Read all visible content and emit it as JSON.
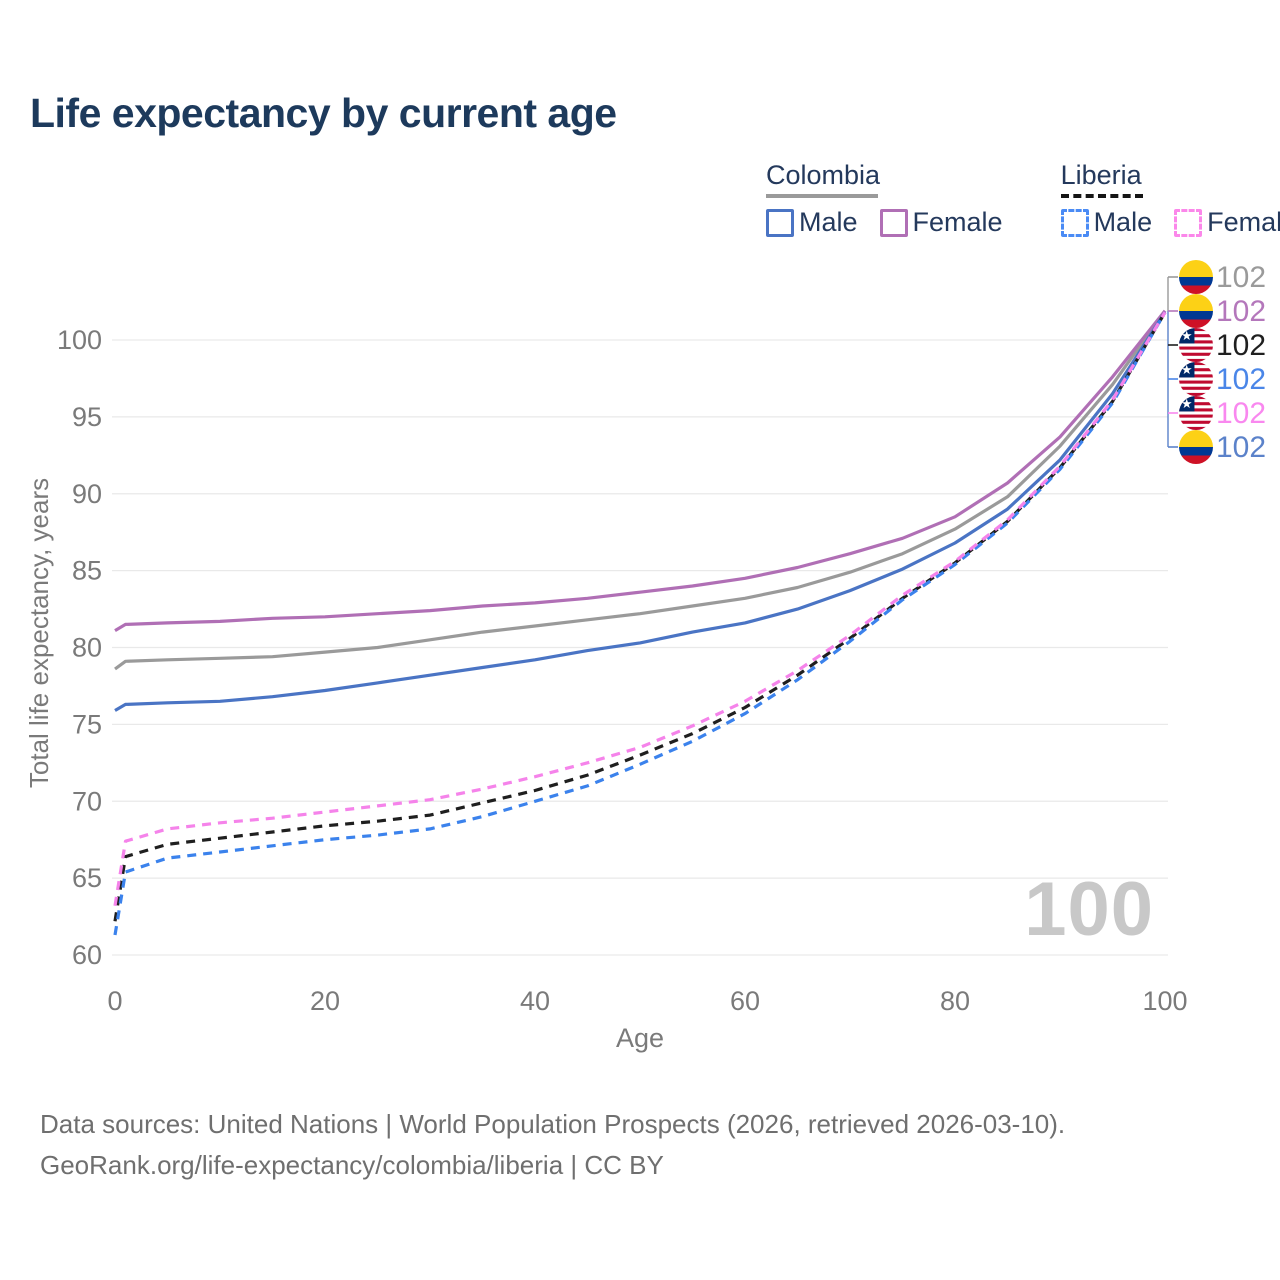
{
  "page": {
    "title": "Life expectancy by current age"
  },
  "legend": {
    "groups": [
      {
        "label": "Colombia",
        "line_style": "solid",
        "line_color": "#9a9a9a"
      },
      {
        "label": "Liberia",
        "line_style": "dashed",
        "line_color": "#151515"
      }
    ],
    "items": [
      {
        "group": "Colombia",
        "label": "Male",
        "color": "#4a74c4",
        "dashed": false
      },
      {
        "group": "Colombia",
        "label": "Female",
        "color": "#b06fb5",
        "dashed": false
      },
      {
        "group": "Liberia",
        "label": "Male",
        "color": "#4a8bf5",
        "dashed": true
      },
      {
        "group": "Liberia",
        "label": "Female",
        "color": "#fb87ea",
        "dashed": true
      }
    ]
  },
  "chart_data": {
    "type": "line",
    "title": "Life expectancy by current age",
    "xlabel": "Age",
    "ylabel": "Total life expectancy, years",
    "xlim": [
      0,
      100
    ],
    "ylim": [
      58.5,
      103
    ],
    "x_ticks": [
      0,
      20,
      40,
      60,
      80,
      100
    ],
    "y_ticks": [
      60,
      65,
      70,
      75,
      80,
      85,
      90,
      95,
      100
    ],
    "grid": "horizontal",
    "x": [
      0,
      1,
      5,
      10,
      15,
      20,
      25,
      30,
      35,
      40,
      45,
      50,
      55,
      60,
      65,
      70,
      75,
      80,
      85,
      90,
      95,
      100
    ],
    "series": [
      {
        "name": "Colombia Total",
        "country": "Colombia",
        "color": "#9a9a9a",
        "dashed": false,
        "values": [
          78.6,
          79.1,
          79.2,
          79.3,
          79.4,
          79.7,
          80.0,
          80.5,
          81.0,
          81.4,
          81.8,
          82.2,
          82.7,
          83.2,
          83.9,
          84.9,
          86.1,
          87.7,
          89.8,
          93.1,
          97.1,
          101.9
        ]
      },
      {
        "name": "Colombia Female",
        "country": "Colombia",
        "color": "#b06fb5",
        "dashed": false,
        "values": [
          81.1,
          81.5,
          81.6,
          81.7,
          81.9,
          82.0,
          82.2,
          82.4,
          82.7,
          82.9,
          83.2,
          83.6,
          84.0,
          84.5,
          85.2,
          86.1,
          87.1,
          88.5,
          90.7,
          93.7,
          97.6,
          101.9
        ]
      },
      {
        "name": "Colombia Male",
        "country": "Colombia",
        "color": "#4a74c4",
        "dashed": false,
        "values": [
          75.9,
          76.3,
          76.4,
          76.5,
          76.8,
          77.2,
          77.7,
          78.2,
          78.7,
          79.2,
          79.8,
          80.3,
          81.0,
          81.6,
          82.5,
          83.7,
          85.1,
          86.8,
          89.0,
          92.2,
          96.5,
          101.8
        ]
      },
      {
        "name": "Liberia Total",
        "country": "Liberia",
        "color": "#1f1f1f",
        "dashed": true,
        "values": [
          62.2,
          66.4,
          67.2,
          67.6,
          68.0,
          68.4,
          68.7,
          69.1,
          69.9,
          70.7,
          71.7,
          73.0,
          74.4,
          76.1,
          78.2,
          80.6,
          83.2,
          85.5,
          88.2,
          91.7,
          96.0,
          101.8
        ]
      },
      {
        "name": "Liberia Male",
        "country": "Liberia",
        "color": "#3b82ec",
        "dashed": true,
        "values": [
          61.3,
          65.4,
          66.3,
          66.7,
          67.1,
          67.5,
          67.8,
          68.2,
          69.0,
          70.0,
          71.0,
          72.4,
          73.9,
          75.7,
          77.9,
          80.4,
          83.1,
          85.4,
          88.1,
          91.6,
          95.9,
          101.8
        ]
      },
      {
        "name": "Liberia Female",
        "country": "Liberia",
        "color": "#f583ea",
        "dashed": true,
        "values": [
          63.2,
          67.4,
          68.2,
          68.6,
          68.9,
          69.3,
          69.7,
          70.1,
          70.8,
          71.6,
          72.5,
          73.5,
          74.9,
          76.5,
          78.5,
          80.8,
          83.4,
          85.6,
          88.3,
          91.8,
          96.1,
          101.8
        ]
      }
    ],
    "end_labels": [
      {
        "series": "Colombia Total",
        "flag": "colombia",
        "value": "102",
        "color": "#9a9a9a"
      },
      {
        "series": "Colombia Female",
        "flag": "colombia",
        "value": "102",
        "color": "#b477bb"
      },
      {
        "series": "Liberia Total",
        "flag": "liberia",
        "value": "102",
        "color": "#1f1f1f"
      },
      {
        "series": "Liberia Male",
        "flag": "liberia",
        "value": "102",
        "color": "#4a86e8"
      },
      {
        "series": "Liberia Female",
        "flag": "liberia",
        "value": "102",
        "color": "#f988ef"
      },
      {
        "series": "Colombia Male",
        "flag": "colombia",
        "value": "102",
        "color": "#5b82ca"
      }
    ],
    "legend_position": "top-right"
  },
  "watermark": "100",
  "footer": {
    "line1": "Data sources: United Nations | World Population Prospects (2026, retrieved 2026-03-10).",
    "line2": "GeoRank.org/life-expectancy/colombia/liberia | CC BY"
  }
}
